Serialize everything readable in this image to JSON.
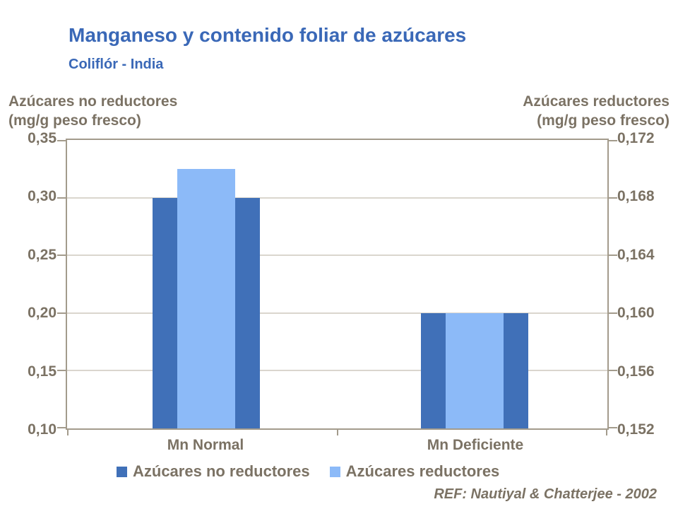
{
  "slide": {
    "title": "Manganeso y contenido foliar de azúcares",
    "subtitle": "Coliflór - India",
    "reference": "REF: Nautiyal & Chatterjee - 2002"
  },
  "colors": {
    "title_blue": "#3A68B7",
    "axis_text": "#7B7264",
    "axis_line": "#A39B8C",
    "gridline": "#DAD6CE",
    "series_dark_blue": "#4070B8",
    "series_light_blue": "#8CBAF8"
  },
  "chart_data": {
    "type": "bar",
    "title": "Manganeso y contenido foliar de azúcares",
    "subtitle": "Coliflór - India",
    "categories": [
      "Mn Normal",
      "Mn Deficiente"
    ],
    "series": [
      {
        "name": "Azúcares no reductores",
        "axis": "left",
        "color": "#4070B8",
        "values": [
          0.3,
          0.2
        ]
      },
      {
        "name": "Azúcares reductores",
        "axis": "right",
        "color": "#8CBAF8",
        "values": [
          0.17,
          0.16
        ]
      }
    ],
    "left_axis": {
      "title": "Azúcares no reductores\n(mg/g peso fresco)",
      "min": 0.1,
      "max": 0.35,
      "step": 0.05,
      "ticks": [
        "0,35",
        "0,30",
        "0,25",
        "0,20",
        "0,15",
        "0,10"
      ]
    },
    "right_axis": {
      "title": "Azúcares reductores\n(mg/g peso fresco)",
      "min": 0.152,
      "max": 0.172,
      "step": 0.004,
      "ticks": [
        "0,172",
        "0,168",
        "0,164",
        "0,160",
        "0,156",
        "0,152"
      ]
    },
    "grid": true,
    "legend_position": "bottom",
    "annotations": [
      "REF: Nautiyal & Chatterjee - 2002"
    ]
  }
}
